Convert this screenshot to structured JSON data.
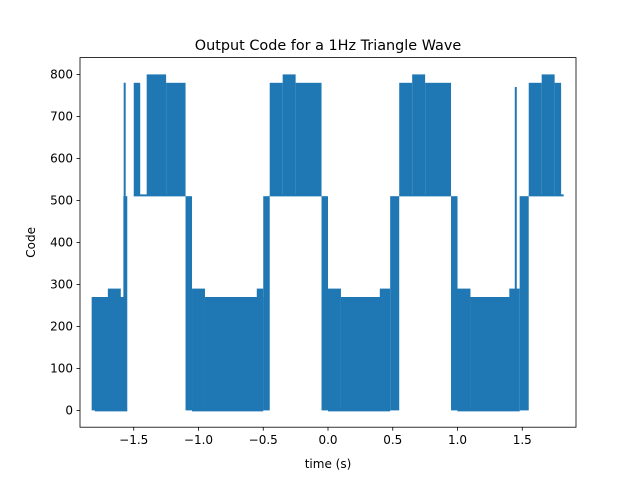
{
  "chart_data": {
    "type": "line",
    "title": "Output Code for a 1Hz Triangle Wave",
    "xlabel": "time (s)",
    "ylabel": "Code",
    "xlim": [
      -1.915,
      1.915
    ],
    "ylim": [
      -40,
      840
    ],
    "xticks": [
      -1.5,
      -1.0,
      -0.5,
      0.0,
      0.5,
      1.0,
      1.5
    ],
    "xtick_labels": [
      "−1.5",
      "−1.0",
      "−0.5",
      "0.0",
      "0.5",
      "1.0",
      "1.5"
    ],
    "yticks": [
      0,
      100,
      200,
      300,
      400,
      500,
      600,
      700,
      800
    ],
    "ytick_labels": [
      "0",
      "100",
      "200",
      "300",
      "400",
      "500",
      "600",
      "700",
      "800"
    ],
    "grid": false,
    "legend": "none",
    "series_color": "#1f77b4",
    "series": [
      {
        "x_range": [
          -1.82,
          1.82
        ],
        "blocks": [
          {
            "x": [
              -1.825,
              -1.575
            ],
            "low": 0,
            "high": 270
          },
          {
            "x": [
              -1.7,
              -1.6
            ],
            "low": 0,
            "high": 290
          },
          {
            "x": [
              -1.58,
              -1.55
            ],
            "low": 0,
            "high": 510
          },
          {
            "x": [
              -1.5,
              -1.45
            ],
            "low": 512,
            "high": 780
          },
          {
            "x": [
              -1.4,
              -1.25
            ],
            "low": 512,
            "high": 800
          },
          {
            "x": [
              -1.25,
              -1.1
            ],
            "low": 512,
            "high": 780
          },
          {
            "x": [
              -1.1,
              -1.05
            ],
            "low": 0,
            "high": 510
          },
          {
            "x": [
              -1.05,
              -0.95
            ],
            "low": 0,
            "high": 290
          },
          {
            "x": [
              -0.95,
              -0.5
            ],
            "low": 0,
            "high": 270
          },
          {
            "x": [
              -0.55,
              -0.5
            ],
            "low": 0,
            "high": 290
          },
          {
            "x": [
              -0.5,
              -0.45
            ],
            "low": 0,
            "high": 510
          },
          {
            "x": [
              -0.45,
              -0.35
            ],
            "low": 512,
            "high": 780
          },
          {
            "x": [
              -0.35,
              -0.25
            ],
            "low": 512,
            "high": 800
          },
          {
            "x": [
              -0.25,
              -0.05
            ],
            "low": 512,
            "high": 780
          },
          {
            "x": [
              -0.05,
              0.0
            ],
            "low": 0,
            "high": 510
          },
          {
            "x": [
              0.0,
              0.1
            ],
            "low": 0,
            "high": 290
          },
          {
            "x": [
              0.1,
              0.45
            ],
            "low": 0,
            "high": 270
          },
          {
            "x": [
              0.4,
              0.48
            ],
            "low": 0,
            "high": 290
          },
          {
            "x": [
              0.48,
              0.55
            ],
            "low": 0,
            "high": 510
          },
          {
            "x": [
              0.55,
              0.65
            ],
            "low": 512,
            "high": 780
          },
          {
            "x": [
              0.65,
              0.75
            ],
            "low": 512,
            "high": 800
          },
          {
            "x": [
              0.75,
              0.95
            ],
            "low": 512,
            "high": 780
          },
          {
            "x": [
              0.95,
              1.0
            ],
            "low": 0,
            "high": 510
          },
          {
            "x": [
              1.0,
              1.1
            ],
            "low": 0,
            "high": 290
          },
          {
            "x": [
              1.1,
              1.45
            ],
            "low": 0,
            "high": 270
          },
          {
            "x": [
              1.4,
              1.48
            ],
            "low": 0,
            "high": 290
          },
          {
            "x": [
              1.48,
              1.55
            ],
            "low": 0,
            "high": 510
          },
          {
            "x": [
              1.55,
              1.65
            ],
            "low": 512,
            "high": 780
          },
          {
            "x": [
              1.65,
              1.75
            ],
            "low": 512,
            "high": 800
          },
          {
            "x": [
              1.75,
              1.8
            ],
            "low": 512,
            "high": 780
          }
        ],
        "plateaus": [
          {
            "x": [
              -1.5,
              -1.1
            ],
            "y": 512
          },
          {
            "x": [
              -0.45,
              -0.05
            ],
            "y": 512
          },
          {
            "x": [
              0.55,
              0.95
            ],
            "y": 512
          },
          {
            "x": [
              1.55,
              1.82
            ],
            "y": 512
          },
          {
            "x": [
              -1.8,
              -1.55
            ],
            "y": 0
          },
          {
            "x": [
              -1.05,
              -0.5
            ],
            "y": 0
          },
          {
            "x": [
              0.0,
              0.48
            ],
            "y": 0
          },
          {
            "x": [
              1.0,
              1.48
            ],
            "y": 0
          }
        ],
        "spikes": [
          {
            "x": -1.57,
            "y": 780
          },
          {
            "x": 1.45,
            "y": 770
          }
        ]
      }
    ]
  }
}
